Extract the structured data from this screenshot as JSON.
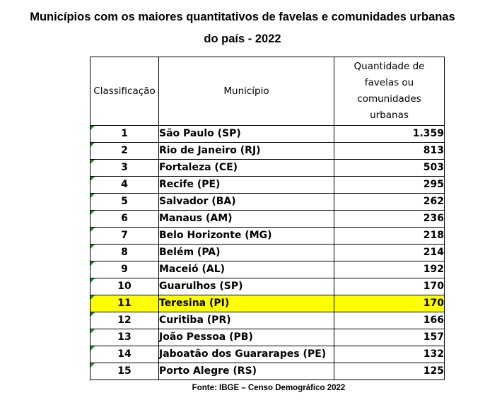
{
  "title": {
    "line1": "Municípios com os maiores quantitativos de favelas e comunidades urbanas",
    "line2": "do país - 2022"
  },
  "table": {
    "headers": {
      "rank": "Classificação",
      "municipality": "Município",
      "quantity": "Quantidade de favelas ou comunidades urbanas"
    },
    "rows": [
      {
        "rank": "1",
        "municipality": "São Paulo (SP)",
        "quantity": "1.359"
      },
      {
        "rank": "2",
        "municipality": "Rio de Janeiro (RJ)",
        "quantity": "813"
      },
      {
        "rank": "3",
        "municipality": "Fortaleza (CE)",
        "quantity": "503"
      },
      {
        "rank": "4",
        "municipality": "Recife (PE)",
        "quantity": "295"
      },
      {
        "rank": "5",
        "municipality": "Salvador (BA)",
        "quantity": "262"
      },
      {
        "rank": "6",
        "municipality": "Manaus (AM)",
        "quantity": "236"
      },
      {
        "rank": "7",
        "municipality": "Belo Horizonte (MG)",
        "quantity": "218"
      },
      {
        "rank": "8",
        "municipality": "Belém (PA)",
        "quantity": "214"
      },
      {
        "rank": "9",
        "municipality": "Maceió (AL)",
        "quantity": "192"
      },
      {
        "rank": "10",
        "municipality": "Guarulhos (SP)",
        "quantity": "170"
      },
      {
        "rank": "11",
        "municipality": "Teresina (PI)",
        "quantity": "170",
        "highlighted": true
      },
      {
        "rank": "12",
        "municipality": "Curitiba (PR)",
        "quantity": "166"
      },
      {
        "rank": "13",
        "municipality": "João Pessoa (PB)",
        "quantity": "157"
      },
      {
        "rank": "14",
        "municipality": "Jaboatão dos Guararapes (PE)",
        "quantity": "132"
      },
      {
        "rank": "15",
        "municipality": "Porto Alegre (RS)",
        "quantity": "125"
      }
    ],
    "highlight_color": "#ffff00",
    "marker_color": "#1e8c2e"
  },
  "source": "Fonte: IBGE – Censo Demográfico 2022"
}
